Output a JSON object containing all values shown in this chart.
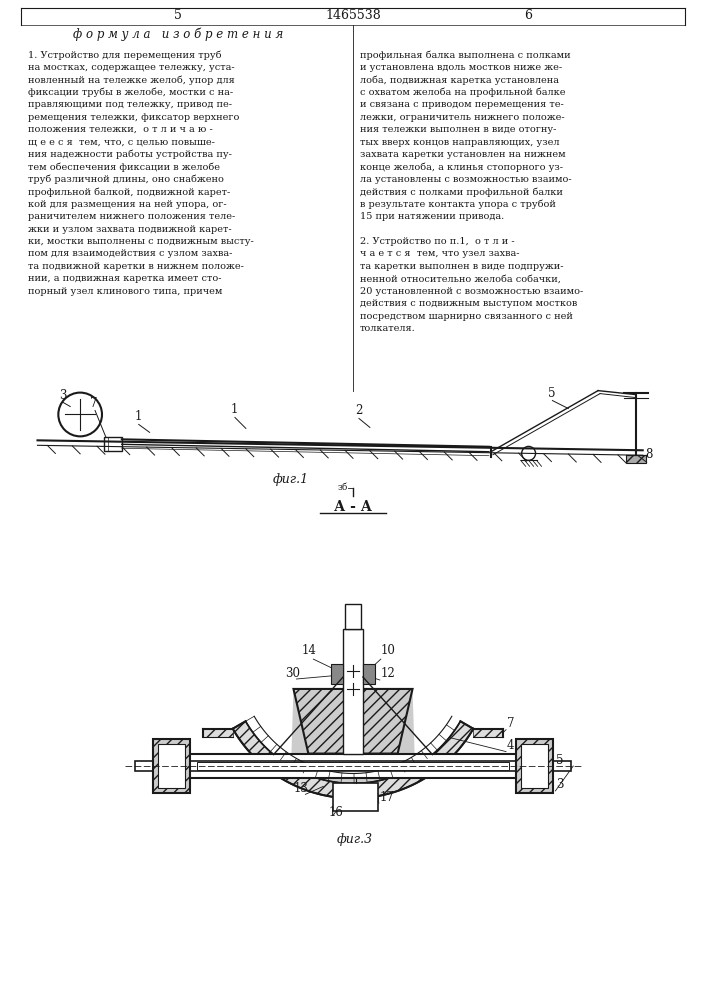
{
  "title": "1465538",
  "page_left": "5",
  "page_right": "6",
  "formula_title": "ф о р м у л а   и з о б р е т е н и я",
  "left_text": [
    "1. Устройство для перемещения труб",
    "на мостках, содержащее тележку, уста-",
    "новленный на тележке желоб, упор для",
    "фиксации трубы в желобе, мостки с на-",
    "правляющими под тележку, привод пе-",
    "ремещения тележки, фиксатор верхнего",
    "положения тележки,  о т л и ч а ю -",
    "щ е е с я  тем, что, с целью повыше-",
    "ния надежности работы устройства пу-",
    "тем обеспечения фиксации в желобе",
    "труб различной длины, оно снабжено",
    "профильной балкой, подвижной карет-",
    "кой для размещения на ней упора, ог-",
    "раничителем нижнего положения теле-",
    "жки и узлом захвата подвижной карет-",
    "ки, мостки выполнены с подвижным высту-",
    "пом для взаимодействия с узлом захва-",
    "та подвижной каретки в нижнем положе-",
    "нии, а подвижная каретка имеет сто-",
    "порный узел клинового типа, причем"
  ],
  "right_text": [
    "профильная балка выполнена с полками",
    "и установлена вдоль мостков ниже же-",
    "лоба, подвижная каретка установлена",
    "с охватом желоба на профильной балке",
    "и связана с приводом перемещения те-",
    "лежки, ограничитель нижнего положе-",
    "ния тележки выполнен в виде отогну-",
    "тых вверх концов направляющих, узел",
    "захвата каретки установлен на нижнем",
    "конце желоба, а клинья стопорного уз-",
    "ла установлены с возможностью взаимо-",
    "действия с полками профильной балки",
    "в результате контакта упора с трубой",
    "15 при натяжении привода.",
    "",
    "2. Устройство по п.1,  о т л и -",
    "ч а е т с я  тем, что узел захва-",
    "та каретки выполнен в виде подпружи-",
    "ненной относительно желоба собачки,",
    "20 установленной с возможностью взаимо-",
    "действия с подвижным выступом мостков",
    "посредством шарнирно связанного с ней",
    "толкателя."
  ],
  "fig1_label": "фиг.1",
  "fig3_label": "фиг.3",
  "aa_label": "А - А",
  "background": "#ffffff",
  "line_color": "#1a1a1a",
  "text_color": "#1a1a1a"
}
